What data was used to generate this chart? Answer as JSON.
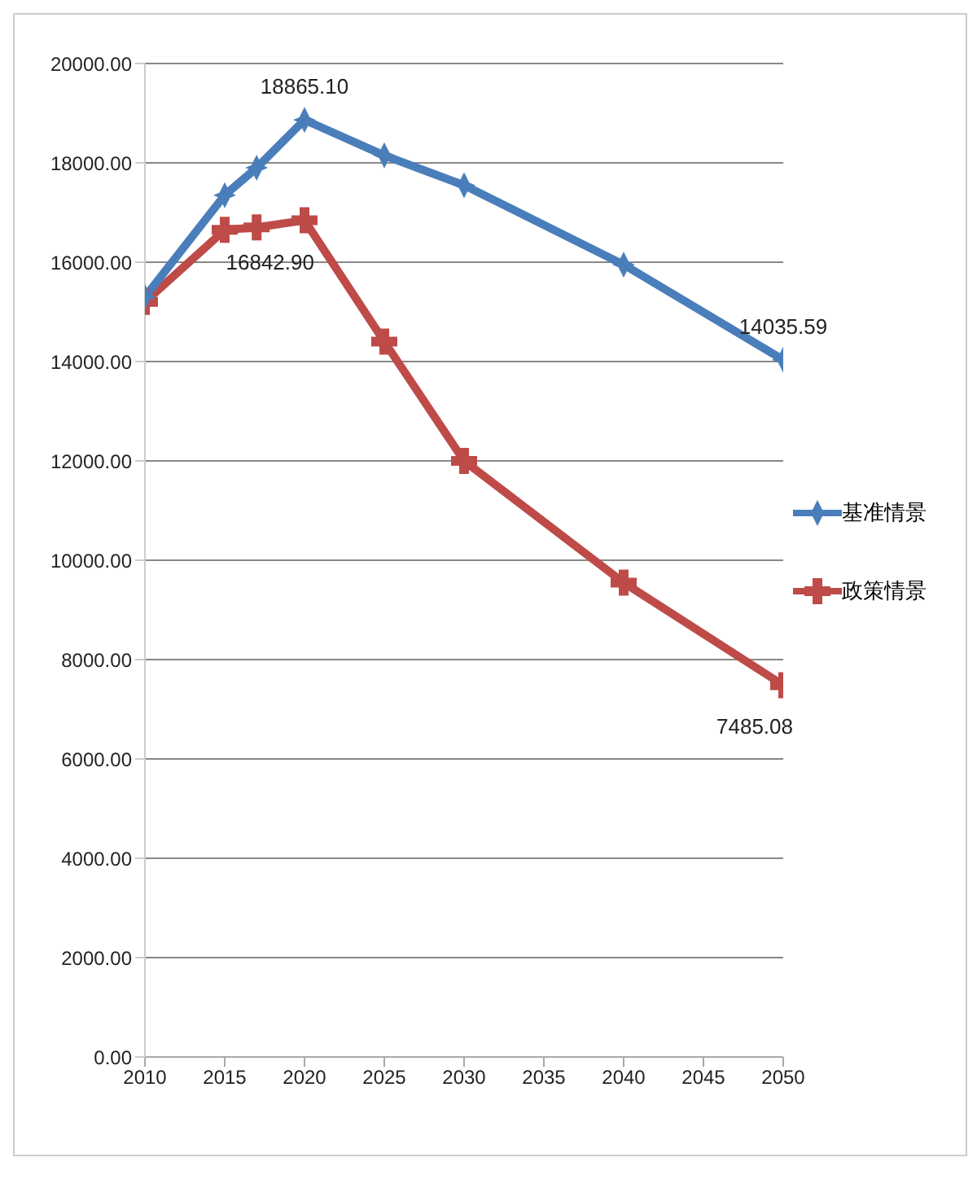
{
  "chart_data": {
    "type": "line",
    "x": [
      2010,
      2015,
      2017,
      2020,
      2025,
      2030,
      2040,
      2050
    ],
    "series": [
      {
        "name": "基准情景",
        "color": "#4a7ebb",
        "marker": "diamond",
        "values": [
          15300,
          17350,
          17900,
          18865.1,
          18150,
          17550,
          15950,
          14035.59
        ],
        "value_labels": [
          null,
          null,
          null,
          "18865.10",
          null,
          null,
          null,
          "14035.59"
        ]
      },
      {
        "name": "政策情景",
        "color": "#be4b48",
        "marker": "cross",
        "values": [
          15200,
          16650,
          16700,
          16842.9,
          14400,
          12000,
          9550,
          7485.08
        ],
        "value_labels": [
          null,
          null,
          null,
          "16842.90",
          null,
          null,
          null,
          "7485.08"
        ]
      }
    ],
    "xlim": [
      2010,
      2050
    ],
    "xticks": [
      2010,
      2015,
      2020,
      2025,
      2030,
      2035,
      2040,
      2045,
      2050
    ],
    "ylim": [
      0,
      20000
    ],
    "yticks": [
      {
        "value": 0,
        "label": "0.00"
      },
      {
        "value": 2000,
        "label": "2000.00"
      },
      {
        "value": 4000,
        "label": "4000.00"
      },
      {
        "value": 6000,
        "label": "6000.00"
      },
      {
        "value": 8000,
        "label": "8000.00"
      },
      {
        "value": 10000,
        "label": "10000.00"
      },
      {
        "value": 12000,
        "label": "12000.00"
      },
      {
        "value": 14000,
        "label": "14000.00"
      },
      {
        "value": 16000,
        "label": "16000.00"
      },
      {
        "value": 18000,
        "label": "18000.00"
      },
      {
        "value": 20000,
        "label": "20000.00"
      }
    ],
    "grid": "y",
    "legend": "right"
  }
}
